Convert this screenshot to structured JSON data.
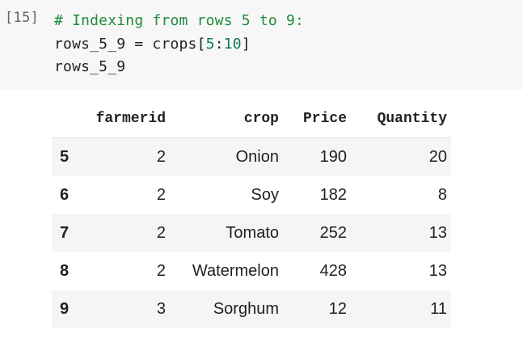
{
  "cell": {
    "execution_count": "[15]",
    "code_lines": [
      [
        {
          "t": "comment",
          "v": "# Indexing from rows 5 to 9:"
        }
      ],
      [
        {
          "t": "plain",
          "v": "rows_5_9 = crops["
        },
        {
          "t": "num",
          "v": "5"
        },
        {
          "t": "plain",
          "v": ":"
        },
        {
          "t": "num",
          "v": "10"
        },
        {
          "t": "plain",
          "v": "]"
        }
      ],
      [
        {
          "t": "plain",
          "v": "rows_5_9"
        }
      ]
    ]
  },
  "table": {
    "columns": [
      "",
      "farmerid",
      "crop",
      "Price",
      "Quantity"
    ],
    "rows": [
      {
        "index": "5",
        "farmerid": "2",
        "crop": "Onion",
        "price": "190",
        "quantity": "20"
      },
      {
        "index": "6",
        "farmerid": "2",
        "crop": "Soy",
        "price": "182",
        "quantity": "8"
      },
      {
        "index": "7",
        "farmerid": "2",
        "crop": "Tomato",
        "price": "252",
        "quantity": "13"
      },
      {
        "index": "8",
        "farmerid": "2",
        "crop": "Watermelon",
        "price": "428",
        "quantity": "13"
      },
      {
        "index": "9",
        "farmerid": "3",
        "crop": "Sorghum",
        "price": "12",
        "quantity": "11"
      }
    ]
  },
  "colors": {
    "comment": "#1e8c3a",
    "number": "#0a7a5a",
    "cell_background": "#f7f7f7",
    "row_stripe": "#f5f5f5"
  }
}
